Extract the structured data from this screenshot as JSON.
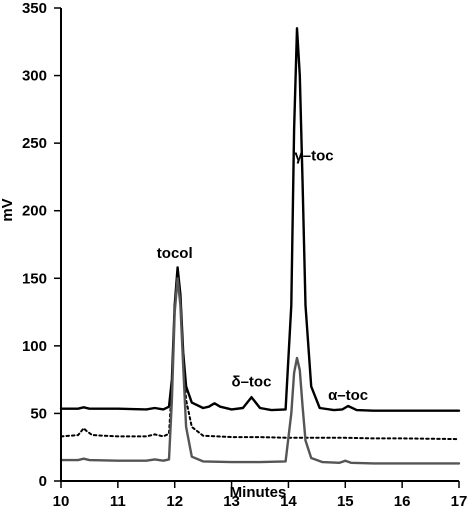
{
  "chart_data": {
    "type": "line",
    "title": "",
    "xlabel": "Minutes",
    "ylabel": "mV",
    "xlim": [
      10,
      17
    ],
    "ylim": [
      0,
      350
    ],
    "x_ticks": [
      10,
      11,
      12,
      13,
      14,
      15,
      16,
      17
    ],
    "y_ticks": [
      0,
      50,
      100,
      150,
      200,
      250,
      300,
      350
    ],
    "grid": false,
    "legend": "none",
    "series": [
      {
        "style": "solid",
        "color": "#000000",
        "x": [
          10.0,
          10.3,
          10.4,
          10.5,
          11.0,
          11.5,
          11.65,
          11.8,
          11.9,
          11.95,
          12.0,
          12.05,
          12.1,
          12.15,
          12.2,
          12.3,
          12.5,
          12.6,
          12.7,
          12.8,
          13.0,
          13.2,
          13.35,
          13.5,
          13.7,
          13.95,
          14.05,
          14.1,
          14.15,
          14.2,
          14.25,
          14.3,
          14.4,
          14.55,
          14.8,
          14.95,
          15.05,
          15.2,
          15.5,
          16.0,
          17.0
        ],
        "y": [
          53.5,
          53.5,
          54.5,
          53.5,
          53.5,
          53.0,
          54.0,
          53.0,
          55.0,
          75.0,
          130.0,
          158.0,
          138.0,
          95.0,
          70.0,
          58.0,
          54.0,
          55.0,
          57.5,
          55.0,
          53.0,
          54.0,
          62.0,
          54.0,
          52.5,
          53.0,
          130.0,
          260.0,
          335.0,
          300.0,
          220.0,
          130.0,
          70.0,
          54.0,
          52.5,
          53.0,
          55.5,
          52.5,
          52.0,
          52.0,
          52.0
        ]
      },
      {
        "style": "dotted",
        "color": "#000000",
        "x": [
          10.0,
          10.3,
          10.4,
          10.45,
          10.55,
          11.0,
          11.5,
          11.65,
          11.8,
          11.9,
          11.95,
          12.0,
          12.05,
          12.1,
          12.15,
          12.2,
          12.3,
          12.5,
          13.0,
          13.5,
          14.0,
          14.5,
          15.0,
          15.5,
          16.0,
          17.0
        ],
        "y": [
          33.0,
          34.0,
          39.0,
          37.0,
          34.0,
          33.0,
          33.0,
          34.5,
          33.0,
          35.0,
          70.0,
          130.0,
          155.0,
          135.0,
          90.0,
          60.0,
          40.0,
          33.5,
          32.5,
          32.5,
          32.0,
          32.0,
          32.0,
          31.5,
          31.5,
          31.0
        ]
      },
      {
        "style": "solid",
        "color": "#555555",
        "x": [
          10.0,
          10.3,
          10.4,
          10.5,
          11.0,
          11.5,
          11.65,
          11.8,
          11.9,
          11.95,
          12.0,
          12.05,
          12.1,
          12.15,
          12.2,
          12.3,
          12.5,
          13.0,
          13.5,
          13.95,
          14.05,
          14.1,
          14.15,
          14.2,
          14.25,
          14.3,
          14.4,
          14.6,
          14.9,
          15.0,
          15.1,
          15.5,
          16.0,
          17.0
        ],
        "y": [
          15.5,
          15.5,
          16.5,
          15.5,
          15.0,
          15.0,
          16.0,
          15.0,
          16.0,
          60.0,
          125.0,
          150.0,
          130.0,
          85.0,
          40.0,
          18.0,
          14.5,
          14.0,
          14.0,
          14.5,
          50.0,
          80.0,
          91.0,
          82.0,
          55.0,
          30.0,
          17.0,
          14.0,
          13.5,
          15.0,
          13.5,
          13.0,
          13.0,
          13.0
        ]
      }
    ],
    "annotations": [
      {
        "text": "tocol",
        "x": 12.0,
        "y": 165
      },
      {
        "text": "δ–toc",
        "x": 13.35,
        "y": 70
      },
      {
        "text": "γ–toc",
        "x": 14.45,
        "y": 237
      },
      {
        "text": "α–toc",
        "x": 15.05,
        "y": 60
      }
    ]
  }
}
